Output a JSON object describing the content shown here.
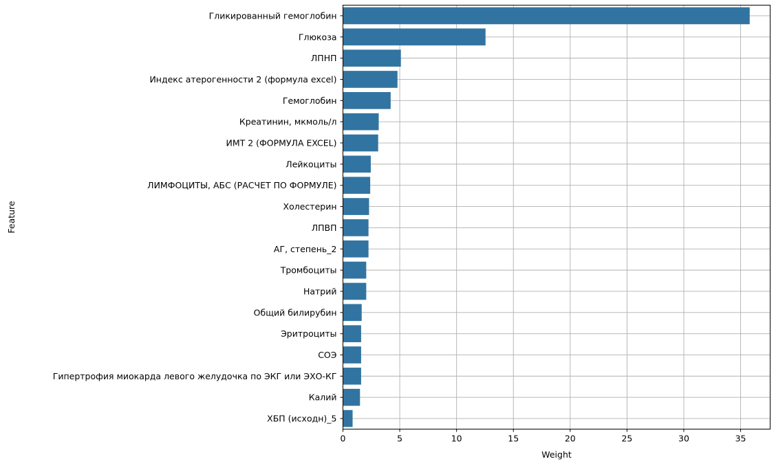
{
  "chart_data": {
    "type": "bar",
    "orientation": "horizontal",
    "xlabel": "Weight",
    "ylabel": "Feature",
    "xlim": [
      0,
      37.6
    ],
    "xticks": [
      0,
      5,
      10,
      15,
      20,
      25,
      30,
      35
    ],
    "grid": true,
    "bar_color": "#3274a1",
    "grid_color": "#b0b0b0",
    "categories": [
      "Гликированный гемоглобин",
      "Глюкоза",
      "ЛПНП",
      "Индекс атерогенности 2 (формула excel)",
      "Гемоглобин",
      "Креатинин, мкмоль/л",
      "ИМТ 2 (ФОРМУЛА EXCEL)",
      "Лейкоциты",
      "ЛИМФОЦИТЫ, АБС (РАСЧЕТ ПО ФОРМУЛЕ)",
      "Холестерин",
      "ЛПВП",
      "АГ, степень_2",
      "Тромбоциты",
      "Натрий",
      "Общий билирубин",
      "Эритроциты",
      "СОЭ",
      "Гипертрофия миокарда левого желудочка по ЭКГ или ЭХО-КГ",
      "Калий",
      "ХБП (исходн)_5"
    ],
    "values": [
      35.8,
      12.55,
      5.1,
      4.8,
      4.2,
      3.15,
      3.1,
      2.45,
      2.4,
      2.3,
      2.25,
      2.25,
      2.05,
      2.05,
      1.65,
      1.6,
      1.6,
      1.6,
      1.5,
      0.85
    ]
  }
}
